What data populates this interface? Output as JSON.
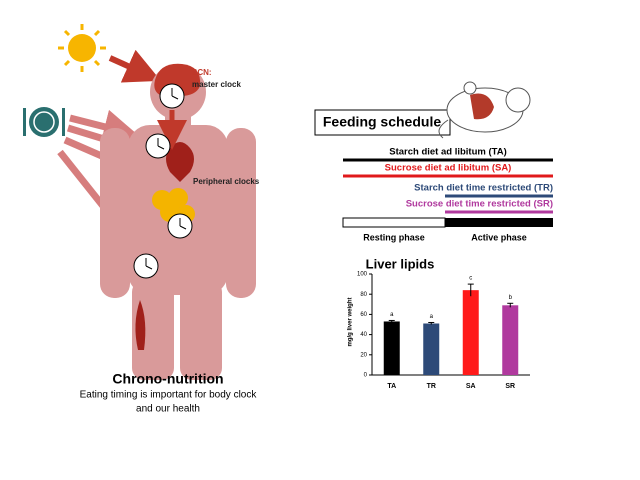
{
  "figure": {
    "scn_label": "SCN:",
    "scn_sublabel": "master clock",
    "peripheral_label": "Peripheral clocks",
    "title": "Chrono-nutrition",
    "caption_line1": "Eating timing is important for body clock",
    "caption_line2": "and our health"
  },
  "feeding": {
    "title": "Feeding schedule",
    "schedules": [
      {
        "label": "Starch diet ad libitum (TA)",
        "color": "#000000"
      },
      {
        "label": "Sucrose diet ad libitum (SA)",
        "color": "#e0191b"
      },
      {
        "label": "Starch diet time restricted (TR)",
        "color": "#2d4a78"
      },
      {
        "label": "Sucrose diet time restricted (SR)",
        "color": "#b0399e"
      }
    ],
    "phases": [
      "Resting phase",
      "Active phase"
    ]
  },
  "chart_data": {
    "type": "bar",
    "title": "Liver lipids",
    "y_label": "mg/g liver weight",
    "categories": [
      "TA",
      "TR",
      "SA",
      "SR"
    ],
    "values": [
      53,
      51,
      84,
      69
    ],
    "errors": [
      1,
      1,
      6,
      2
    ],
    "significance": [
      "a",
      "a",
      "c",
      "b"
    ],
    "colors": [
      "#000000",
      "#2d4a78",
      "#ff1a1a",
      "#b0399e"
    ],
    "ylim": [
      0,
      100
    ],
    "yticks": [
      0,
      20,
      40,
      60,
      80,
      100
    ]
  }
}
